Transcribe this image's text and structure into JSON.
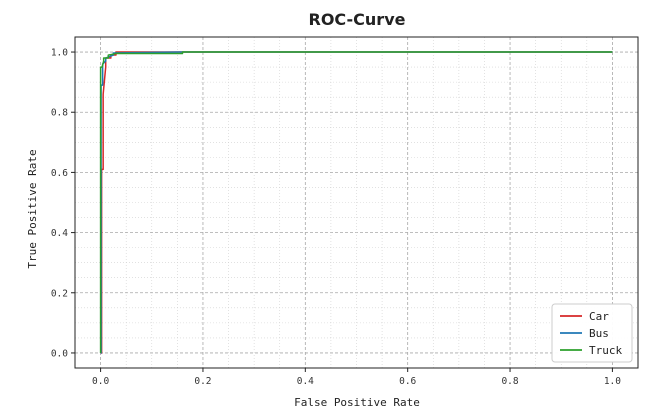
{
  "chart_data": {
    "type": "line",
    "title": "ROC-Curve",
    "xlabel": "False Positive Rate",
    "ylabel": "True Positive Rate",
    "xlim": [
      -0.05,
      1.05
    ],
    "ylim": [
      -0.05,
      1.05
    ],
    "xticks": [
      "0.0",
      "0.2",
      "0.4",
      "0.6",
      "0.8",
      "1.0"
    ],
    "yticks": [
      "0.0",
      "0.2",
      "0.4",
      "0.6",
      "0.8",
      "1.0"
    ],
    "grid": true,
    "legend_position": "lower-right",
    "series": [
      {
        "name": "Car",
        "color": "#d62728",
        "x": [
          0.0,
          0.002,
          0.002,
          0.005,
          0.005,
          0.01,
          0.01,
          0.02,
          0.02,
          0.03,
          0.03,
          0.16,
          1.0
        ],
        "y": [
          0.0,
          0.0,
          0.61,
          0.61,
          0.86,
          0.95,
          0.98,
          0.98,
          0.99,
          0.99,
          1.0,
          1.0,
          1.0
        ]
      },
      {
        "name": "Bus",
        "color": "#1f77b4",
        "x": [
          0.0,
          0.001,
          0.001,
          0.004,
          0.004,
          0.01,
          0.01,
          0.025,
          0.025,
          0.16,
          1.0
        ],
        "y": [
          0.0,
          0.0,
          0.89,
          0.89,
          0.96,
          0.97,
          0.98,
          0.99,
          0.997,
          1.0,
          1.0
        ]
      },
      {
        "name": "Truck",
        "color": "#2ca02c",
        "x": [
          0.0,
          0.0,
          0.003,
          0.006,
          0.006,
          0.015,
          0.015,
          0.03,
          0.16,
          0.16,
          1.0
        ],
        "y": [
          0.0,
          0.95,
          0.95,
          0.97,
          0.98,
          0.98,
          0.99,
          0.995,
          0.995,
          1.0,
          1.0
        ]
      }
    ]
  }
}
